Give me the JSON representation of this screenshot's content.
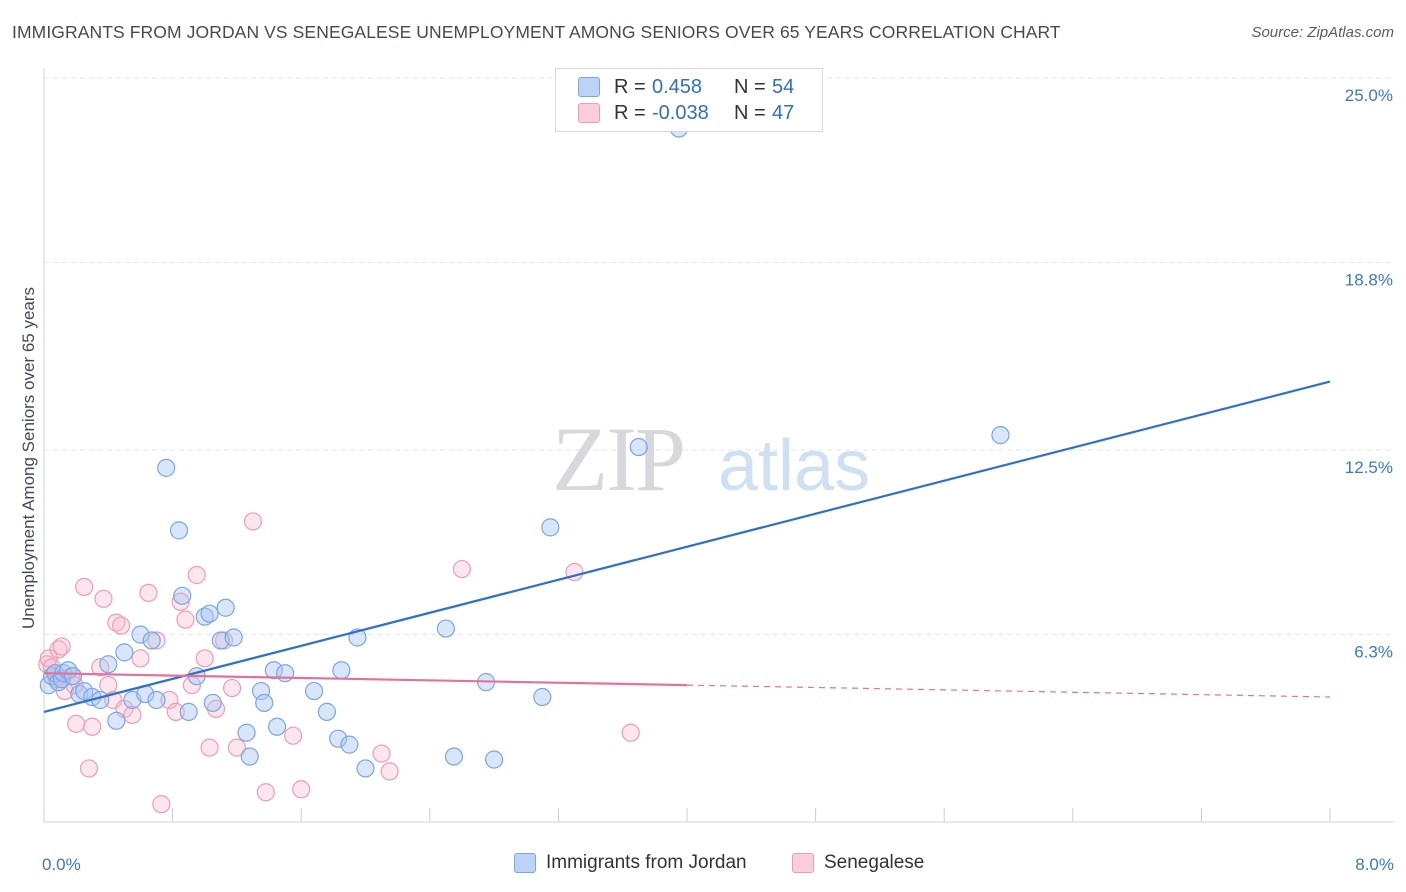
{
  "header": {
    "title": "IMMIGRANTS FROM JORDAN VS SENEGALESE UNEMPLOYMENT AMONG SENIORS OVER 65 YEARS CORRELATION CHART",
    "source": "Source: ZipAtlas.com"
  },
  "watermark": {
    "zip": "ZIP",
    "atlas": "atlas"
  },
  "legend": {
    "rows": [
      {
        "r_label": "R =",
        "r_value": "0.458",
        "n_label": "N =",
        "n_value": "54",
        "color": "#a9c6f0"
      },
      {
        "r_label": "R =",
        "r_value": "-0.038",
        "n_label": "N =",
        "n_value": "47",
        "color": "#f5b8ca"
      }
    ]
  },
  "bottom_legend": {
    "items": [
      {
        "label": "Immigrants from Jordan",
        "color": "#a9c6f0"
      },
      {
        "label": "Senegalese",
        "color": "#f5b8ca"
      }
    ]
  },
  "chart_data": {
    "type": "scatter",
    "title": "IMMIGRANTS FROM JORDAN VS SENEGALESE UNEMPLOYMENT AMONG SENIORS OVER 65 YEARS CORRELATION CHART",
    "xlabel": "",
    "ylabel": "Unemployment Among Seniors over 65 years",
    "xlim": [
      0,
      8
    ],
    "ylim": [
      0,
      25.0
    ],
    "x_tick_labels": [
      "0.0%",
      "8.0%"
    ],
    "y_ticks": [
      6.3,
      12.5,
      18.8,
      25.0
    ],
    "y_tick_labels": [
      "6.3%",
      "12.5%",
      "18.8%",
      "25.0%"
    ],
    "grid": true,
    "series": [
      {
        "name": "Immigrants from Jordan",
        "color": "#7aa6e6",
        "trend": {
          "x": [
            0,
            8
          ],
          "y": [
            3.7,
            14.8
          ],
          "color": "#2f6fcf"
        },
        "points": [
          [
            0.03,
            4.6
          ],
          [
            0.05,
            4.9
          ],
          [
            0.07,
            5.0
          ],
          [
            0.09,
            4.7
          ],
          [
            0.11,
            4.8
          ],
          [
            0.12,
            5.0
          ],
          [
            0.15,
            5.1
          ],
          [
            0.18,
            4.9
          ],
          [
            0.22,
            4.3
          ],
          [
            0.25,
            4.4
          ],
          [
            0.3,
            4.2
          ],
          [
            0.35,
            4.1
          ],
          [
            0.4,
            5.3
          ],
          [
            0.45,
            3.4
          ],
          [
            0.5,
            5.7
          ],
          [
            0.55,
            4.1
          ],
          [
            0.6,
            6.3
          ],
          [
            0.63,
            4.3
          ],
          [
            0.67,
            6.1
          ],
          [
            0.7,
            4.1
          ],
          [
            0.76,
            11.9
          ],
          [
            0.84,
            9.8
          ],
          [
            0.86,
            7.6
          ],
          [
            0.9,
            3.7
          ],
          [
            0.95,
            4.9
          ],
          [
            1.0,
            6.9
          ],
          [
            1.03,
            7.0
          ],
          [
            1.05,
            4.0
          ],
          [
            1.1,
            6.1
          ],
          [
            1.13,
            7.2
          ],
          [
            1.18,
            6.2
          ],
          [
            1.26,
            3.0
          ],
          [
            1.28,
            2.2
          ],
          [
            1.35,
            4.4
          ],
          [
            1.37,
            4.0
          ],
          [
            1.43,
            5.1
          ],
          [
            1.45,
            3.2
          ],
          [
            1.5,
            5.0
          ],
          [
            1.68,
            4.4
          ],
          [
            1.76,
            3.7
          ],
          [
            1.83,
            2.8
          ],
          [
            1.85,
            5.1
          ],
          [
            1.9,
            2.6
          ],
          [
            1.95,
            6.2
          ],
          [
            2.0,
            1.8
          ],
          [
            2.5,
            6.5
          ],
          [
            2.55,
            2.2
          ],
          [
            2.75,
            4.7
          ],
          [
            2.8,
            2.1
          ],
          [
            3.1,
            4.2
          ],
          [
            3.15,
            9.9
          ],
          [
            3.7,
            12.6
          ],
          [
            3.95,
            23.3
          ],
          [
            5.95,
            13.0
          ]
        ]
      },
      {
        "name": "Senegalese",
        "color": "#ef9bb5",
        "trend": {
          "x": [
            0,
            4.0
          ],
          "y": [
            5.0,
            4.6
          ],
          "color": "#e5709a",
          "dashed_extension": {
            "x": [
              4.0,
              8.0
            ],
            "y": [
              4.6,
              4.2
            ]
          }
        },
        "points": [
          [
            0.02,
            5.3
          ],
          [
            0.03,
            5.5
          ],
          [
            0.05,
            5.2
          ],
          [
            0.07,
            5.0
          ],
          [
            0.08,
            4.8
          ],
          [
            0.09,
            5.8
          ],
          [
            0.11,
            5.9
          ],
          [
            0.13,
            4.4
          ],
          [
            0.17,
            4.9
          ],
          [
            0.19,
            4.6
          ],
          [
            0.2,
            3.3
          ],
          [
            0.25,
            7.9
          ],
          [
            0.28,
            1.8
          ],
          [
            0.3,
            3.2
          ],
          [
            0.35,
            5.2
          ],
          [
            0.37,
            7.5
          ],
          [
            0.4,
            4.6
          ],
          [
            0.43,
            4.1
          ],
          [
            0.45,
            6.7
          ],
          [
            0.48,
            6.6
          ],
          [
            0.5,
            3.8
          ],
          [
            0.55,
            3.6
          ],
          [
            0.6,
            5.5
          ],
          [
            0.65,
            7.7
          ],
          [
            0.7,
            6.1
          ],
          [
            0.73,
            0.6
          ],
          [
            0.78,
            4.1
          ],
          [
            0.82,
            3.7
          ],
          [
            0.85,
            7.4
          ],
          [
            0.88,
            6.8
          ],
          [
            0.92,
            4.6
          ],
          [
            0.95,
            8.3
          ],
          [
            1.0,
            5.5
          ],
          [
            1.03,
            2.5
          ],
          [
            1.07,
            3.8
          ],
          [
            1.12,
            6.1
          ],
          [
            1.17,
            4.5
          ],
          [
            1.2,
            2.5
          ],
          [
            1.3,
            10.1
          ],
          [
            1.38,
            1.0
          ],
          [
            1.55,
            2.9
          ],
          [
            1.6,
            1.1
          ],
          [
            2.1,
            2.3
          ],
          [
            2.15,
            1.7
          ],
          [
            2.6,
            8.5
          ],
          [
            3.3,
            8.4
          ],
          [
            3.65,
            3.0
          ]
        ]
      }
    ]
  }
}
